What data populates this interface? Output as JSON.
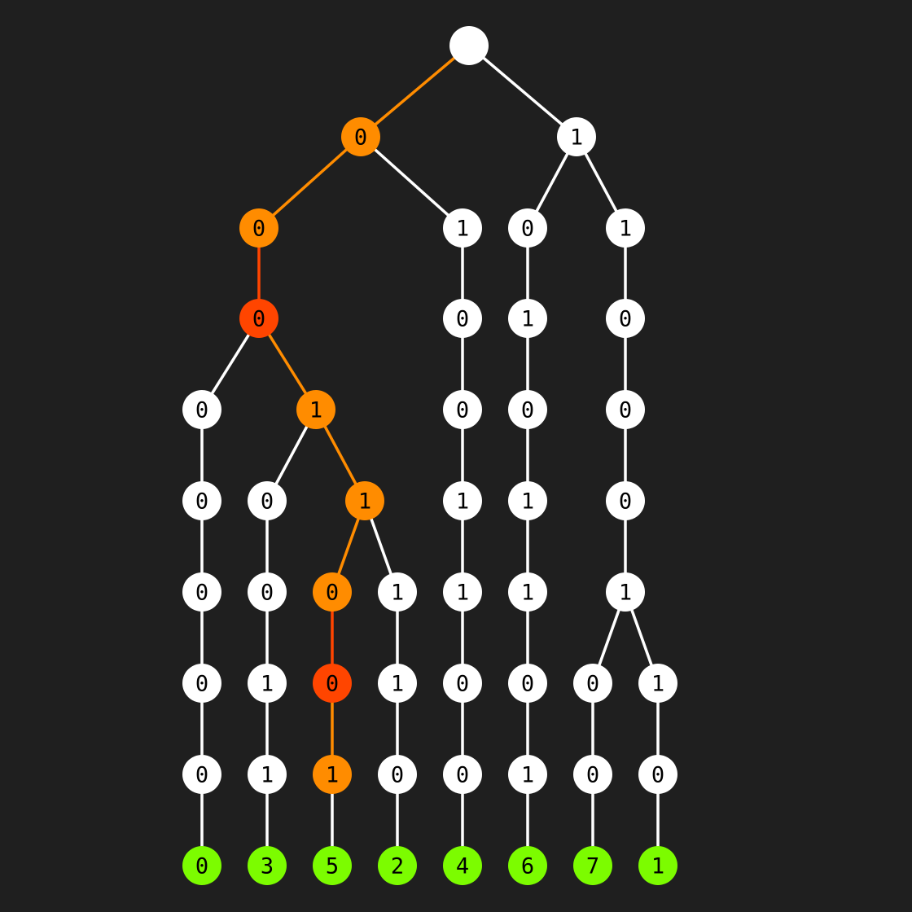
{
  "colors": {
    "background": "#1f1f1f",
    "default_node": "#ffffff",
    "default_edge": "#ffffff",
    "default_text": "#000000",
    "path_orange": "#ff8c00",
    "path_red": "#ff4500",
    "leaf_green": "#7cfc00"
  },
  "tree": {
    "root": {
      "label": ""
    },
    "nodes": [
      {
        "id": "n0",
        "parent": "root",
        "label": "0",
        "state": "path"
      },
      {
        "id": "n1",
        "parent": "root",
        "label": "1",
        "state": "default"
      },
      {
        "id": "n00",
        "parent": "n0",
        "label": "0",
        "state": "path"
      },
      {
        "id": "n01",
        "parent": "n0",
        "label": "1",
        "state": "default"
      },
      {
        "id": "n10",
        "parent": "n1",
        "label": "0",
        "state": "default"
      },
      {
        "id": "n11",
        "parent": "n1",
        "label": "1",
        "state": "default"
      },
      {
        "id": "n000",
        "parent": "n00",
        "label": "0",
        "state": "hot"
      },
      {
        "id": "n010",
        "parent": "n01",
        "label": "0",
        "state": "default"
      },
      {
        "id": "n101",
        "parent": "n10",
        "label": "1",
        "state": "default"
      },
      {
        "id": "n110",
        "parent": "n11",
        "label": "0",
        "state": "default"
      },
      {
        "id": "a4",
        "parent": "n000",
        "label": "0",
        "state": "default"
      },
      {
        "id": "b4",
        "parent": "n000",
        "label": "1",
        "state": "path"
      },
      {
        "id": "c4",
        "parent": "n010",
        "label": "0",
        "state": "default"
      },
      {
        "id": "d4",
        "parent": "n101",
        "label": "0",
        "state": "default"
      },
      {
        "id": "e4",
        "parent": "n110",
        "label": "0",
        "state": "default"
      },
      {
        "id": "a5",
        "parent": "a4",
        "label": "0",
        "state": "default"
      },
      {
        "id": "b5",
        "parent": "b4",
        "label": "0",
        "state": "default"
      },
      {
        "id": "b5b",
        "parent": "b4",
        "label": "1",
        "state": "path"
      },
      {
        "id": "c5",
        "parent": "c4",
        "label": "1",
        "state": "default"
      },
      {
        "id": "d5",
        "parent": "d4",
        "label": "1",
        "state": "default"
      },
      {
        "id": "e5",
        "parent": "e4",
        "label": "0",
        "state": "default"
      },
      {
        "id": "a6",
        "parent": "a5",
        "label": "0",
        "state": "default"
      },
      {
        "id": "b6",
        "parent": "b5",
        "label": "0",
        "state": "default"
      },
      {
        "id": "f6",
        "parent": "b5b",
        "label": "0",
        "state": "path"
      },
      {
        "id": "g6",
        "parent": "b5b",
        "label": "1",
        "state": "default"
      },
      {
        "id": "c6",
        "parent": "c5",
        "label": "1",
        "state": "default"
      },
      {
        "id": "d6",
        "parent": "d5",
        "label": "1",
        "state": "default"
      },
      {
        "id": "e6",
        "parent": "e5",
        "label": "1",
        "state": "default"
      },
      {
        "id": "a7",
        "parent": "a6",
        "label": "0",
        "state": "default"
      },
      {
        "id": "b7",
        "parent": "b6",
        "label": "1",
        "state": "default"
      },
      {
        "id": "f7",
        "parent": "f6",
        "label": "0",
        "state": "hot"
      },
      {
        "id": "g7",
        "parent": "g6",
        "label": "1",
        "state": "default"
      },
      {
        "id": "c7",
        "parent": "c6",
        "label": "0",
        "state": "default"
      },
      {
        "id": "d7",
        "parent": "d6",
        "label": "0",
        "state": "default"
      },
      {
        "id": "h7",
        "parent": "e6",
        "label": "0",
        "state": "default"
      },
      {
        "id": "i7",
        "parent": "e6",
        "label": "1",
        "state": "default"
      },
      {
        "id": "a8",
        "parent": "a7",
        "label": "0",
        "state": "default"
      },
      {
        "id": "b8",
        "parent": "b7",
        "label": "1",
        "state": "default"
      },
      {
        "id": "f8",
        "parent": "f7",
        "label": "1",
        "state": "path"
      },
      {
        "id": "g8",
        "parent": "g7",
        "label": "0",
        "state": "default"
      },
      {
        "id": "c8",
        "parent": "c7",
        "label": "0",
        "state": "default"
      },
      {
        "id": "d8",
        "parent": "d7",
        "label": "1",
        "state": "default"
      },
      {
        "id": "h8",
        "parent": "h7",
        "label": "0",
        "state": "default"
      },
      {
        "id": "i8",
        "parent": "i7",
        "label": "0",
        "state": "default"
      },
      {
        "id": "a9",
        "parent": "a8",
        "label": "0",
        "state": "leaf"
      },
      {
        "id": "b9",
        "parent": "b8",
        "label": "3",
        "state": "leaf"
      },
      {
        "id": "f9",
        "parent": "f8",
        "label": "5",
        "state": "leaf"
      },
      {
        "id": "g9",
        "parent": "g8",
        "label": "2",
        "state": "leaf"
      },
      {
        "id": "c9",
        "parent": "c8",
        "label": "4",
        "state": "leaf"
      },
      {
        "id": "d9",
        "parent": "d8",
        "label": "6",
        "state": "leaf"
      },
      {
        "id": "h9",
        "parent": "h8",
        "label": "7",
        "state": "leaf"
      },
      {
        "id": "i9",
        "parent": "i8",
        "label": "1",
        "state": "leaf"
      }
    ],
    "edges": [
      {
        "from": "root",
        "to": "n0",
        "state": "orange"
      },
      {
        "from": "root",
        "to": "n1",
        "state": "default"
      },
      {
        "from": "n0",
        "to": "n00",
        "state": "orange"
      },
      {
        "from": "n0",
        "to": "n01",
        "state": "default"
      },
      {
        "from": "n1",
        "to": "n10",
        "state": "default"
      },
      {
        "from": "n1",
        "to": "n11",
        "state": "default"
      },
      {
        "from": "n00",
        "to": "n000",
        "state": "red"
      },
      {
        "from": "n01",
        "to": "n010",
        "state": "default"
      },
      {
        "from": "n10",
        "to": "n101",
        "state": "default"
      },
      {
        "from": "n11",
        "to": "n110",
        "state": "default"
      },
      {
        "from": "n000",
        "to": "a4",
        "state": "default"
      },
      {
        "from": "n000",
        "to": "b4",
        "state": "orange"
      },
      {
        "from": "n010",
        "to": "c4",
        "state": "default"
      },
      {
        "from": "n101",
        "to": "d4",
        "state": "default"
      },
      {
        "from": "n110",
        "to": "e4",
        "state": "default"
      },
      {
        "from": "a4",
        "to": "a5",
        "state": "default"
      },
      {
        "from": "b4",
        "to": "b5",
        "state": "default"
      },
      {
        "from": "b4",
        "to": "b5b",
        "state": "orange"
      },
      {
        "from": "c4",
        "to": "c5",
        "state": "default"
      },
      {
        "from": "d4",
        "to": "d5",
        "state": "default"
      },
      {
        "from": "e4",
        "to": "e5",
        "state": "default"
      },
      {
        "from": "a5",
        "to": "a6",
        "state": "default"
      },
      {
        "from": "b5",
        "to": "b6",
        "state": "default"
      },
      {
        "from": "b5b",
        "to": "f6",
        "state": "orange"
      },
      {
        "from": "b5b",
        "to": "g6",
        "state": "default"
      },
      {
        "from": "c5",
        "to": "c6",
        "state": "default"
      },
      {
        "from": "d5",
        "to": "d6",
        "state": "default"
      },
      {
        "from": "e5",
        "to": "e6",
        "state": "default"
      },
      {
        "from": "a6",
        "to": "a7",
        "state": "default"
      },
      {
        "from": "b6",
        "to": "b7",
        "state": "default"
      },
      {
        "from": "f6",
        "to": "f7",
        "state": "red"
      },
      {
        "from": "g6",
        "to": "g7",
        "state": "default"
      },
      {
        "from": "c6",
        "to": "c7",
        "state": "default"
      },
      {
        "from": "d6",
        "to": "d7",
        "state": "default"
      },
      {
        "from": "e6",
        "to": "h7",
        "state": "default"
      },
      {
        "from": "e6",
        "to": "i7",
        "state": "default"
      },
      {
        "from": "a7",
        "to": "a8",
        "state": "default"
      },
      {
        "from": "b7",
        "to": "b8",
        "state": "default"
      },
      {
        "from": "f7",
        "to": "f8",
        "state": "orange"
      },
      {
        "from": "g7",
        "to": "g8",
        "state": "default"
      },
      {
        "from": "c7",
        "to": "c8",
        "state": "default"
      },
      {
        "from": "d7",
        "to": "d8",
        "state": "default"
      },
      {
        "from": "h7",
        "to": "h8",
        "state": "default"
      },
      {
        "from": "i7",
        "to": "i8",
        "state": "default"
      },
      {
        "from": "a8",
        "to": "a9",
        "state": "default"
      },
      {
        "from": "b8",
        "to": "b9",
        "state": "default"
      },
      {
        "from": "f8",
        "to": "f9",
        "state": "default"
      },
      {
        "from": "g8",
        "to": "g9",
        "state": "default"
      },
      {
        "from": "c8",
        "to": "c9",
        "state": "default"
      },
      {
        "from": "d8",
        "to": "d9",
        "state": "default"
      },
      {
        "from": "h8",
        "to": "h9",
        "state": "default"
      },
      {
        "from": "i8",
        "to": "i9",
        "state": "default"
      }
    ]
  }
}
